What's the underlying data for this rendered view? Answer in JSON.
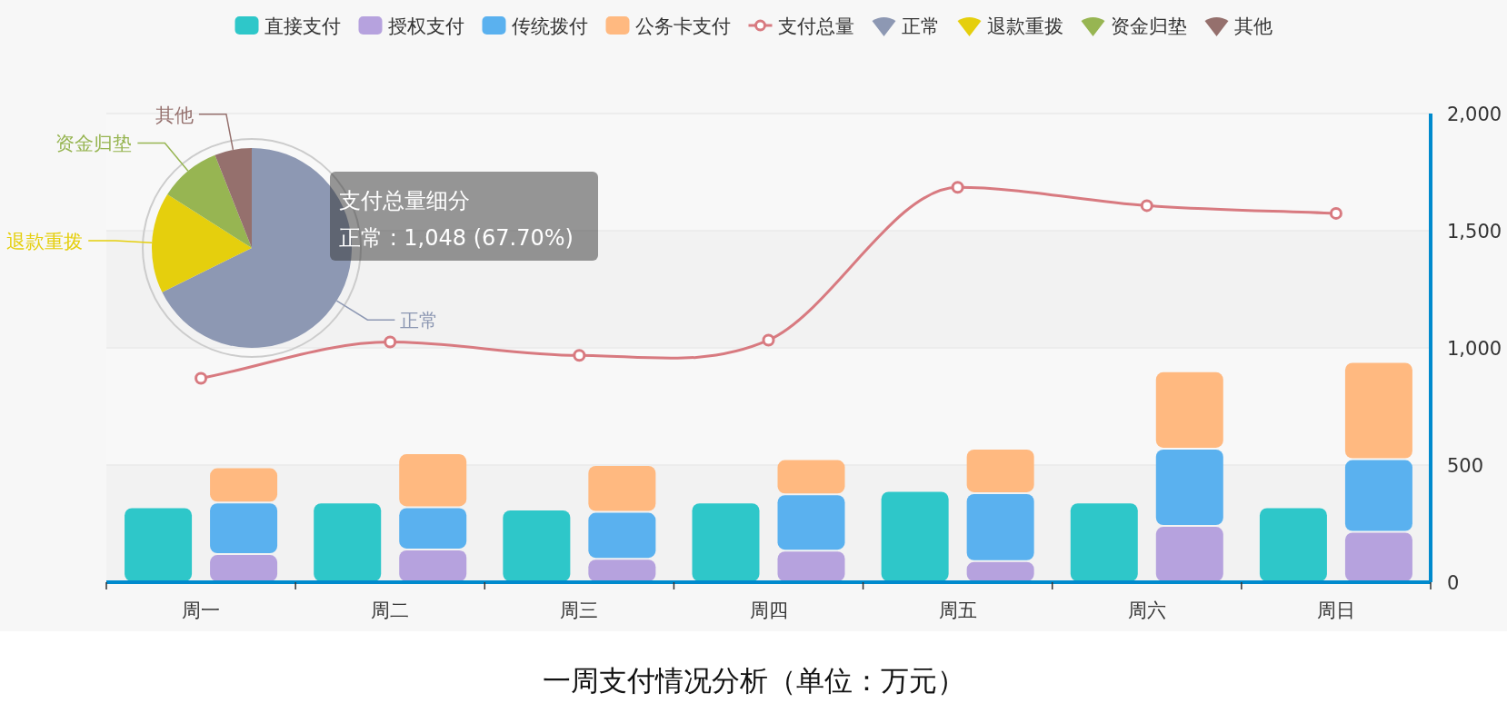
{
  "chart_data": [
    {
      "type": "bar",
      "title": "一周支付情况分析（单位：万元）",
      "categories": [
        "周一",
        "周二",
        "周三",
        "周四",
        "周五",
        "周六",
        "周日"
      ],
      "series": [
        {
          "name": "直接支付",
          "color": "#2ec7c9",
          "values": [
            320,
            340,
            310,
            340,
            390,
            340,
            320
          ]
        },
        {
          "name": "授权支付",
          "color": "#b6a2de",
          "base": [
            0,
            0,
            0,
            0,
            0,
            0,
            0
          ],
          "values": [
            120,
            140,
            100,
            135,
            90,
            240,
            215
          ]
        },
        {
          "name": "传统拨付",
          "color": "#5ab1ef",
          "base": [
            120,
            140,
            100,
            135,
            90,
            240,
            215
          ],
          "values": [
            220,
            180,
            200,
            240,
            290,
            330,
            310
          ]
        },
        {
          "name": "公务卡支付",
          "color": "#ffb980",
          "base": [
            340,
            320,
            300,
            375,
            380,
            570,
            525
          ],
          "values": [
            150,
            230,
            200,
            150,
            190,
            330,
            415
          ]
        },
        {
          "name": "支付总量",
          "type": "line",
          "color": "#d87a80",
          "marker": "circle",
          "values": [
            870,
            1025,
            968,
            1033,
            1685,
            1607,
            1574
          ]
        }
      ],
      "ylim": [
        0,
        2000
      ],
      "yticks": [
        0,
        500,
        {
          "value": 1000,
          "label": "1,000"
        },
        {
          "value": 1500,
          "label": "1,500"
        },
        {
          "value": 2000,
          "label": "2,000"
        }
      ],
      "grid": "y",
      "legend": "top"
    },
    {
      "type": "pie",
      "categories": [
        "正常",
        "退款重拨",
        "资金归垫",
        "其他"
      ],
      "values": [
        67.7,
        16.3,
        10.0,
        6.0
      ],
      "colors": [
        "#8d98b3",
        "#e5cf0d",
        "#97b552",
        "#95706d"
      ],
      "legend": "top",
      "annotations": [
        "支付总量细分",
        "正常 : 1,048 (67.70%)"
      ]
    }
  ]
}
